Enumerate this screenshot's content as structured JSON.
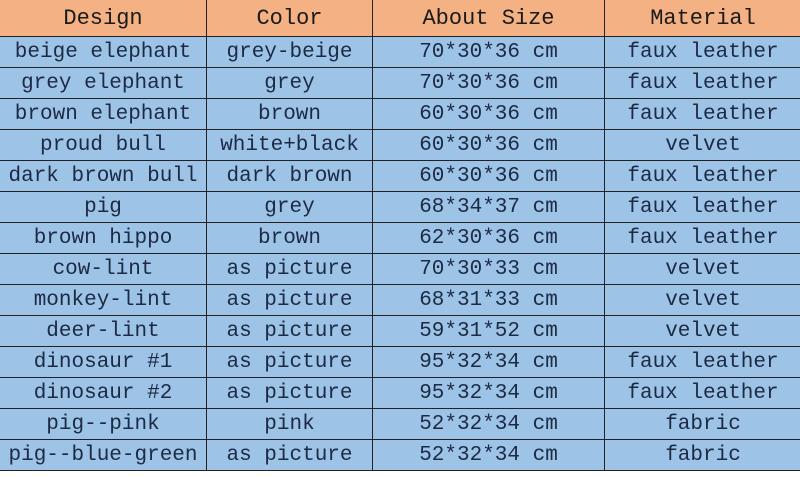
{
  "colors": {
    "header_bg": "#f4b183",
    "row_bg": "#9dc3e6"
  },
  "table": {
    "headers": [
      "Design",
      "Color",
      "About Size",
      "Material"
    ],
    "rows": [
      [
        "beige elephant",
        "grey-beige",
        "70*30*36 cm",
        "faux leather"
      ],
      [
        "grey elephant",
        "grey",
        "70*30*36 cm",
        "faux leather"
      ],
      [
        "brown elephant",
        "brown",
        "60*30*36 cm",
        "faux leather"
      ],
      [
        "proud bull",
        "white+black",
        "60*30*36 cm",
        "velvet"
      ],
      [
        "dark brown bull",
        "dark brown",
        "60*30*36 cm",
        "faux leather"
      ],
      [
        "pig",
        "grey",
        "68*34*37 cm",
        "faux leather"
      ],
      [
        "brown hippo",
        "brown",
        "62*30*36 cm",
        "faux leather"
      ],
      [
        "cow-lint",
        "as picture",
        "70*30*33 cm",
        "velvet"
      ],
      [
        "monkey-lint",
        "as picture",
        "68*31*33 cm",
        "velvet"
      ],
      [
        "deer-lint",
        "as picture",
        "59*31*52 cm",
        "velvet"
      ],
      [
        "dinosaur #1",
        "as picture",
        "95*32*34 cm",
        "faux leather"
      ],
      [
        "dinosaur #2",
        "as picture",
        "95*32*34 cm",
        "faux leather"
      ],
      [
        "pig--pink",
        "pink",
        "52*32*34 cm",
        "fabric"
      ],
      [
        "pig--blue-green",
        "as picture",
        "52*32*34 cm",
        "fabric"
      ]
    ]
  }
}
